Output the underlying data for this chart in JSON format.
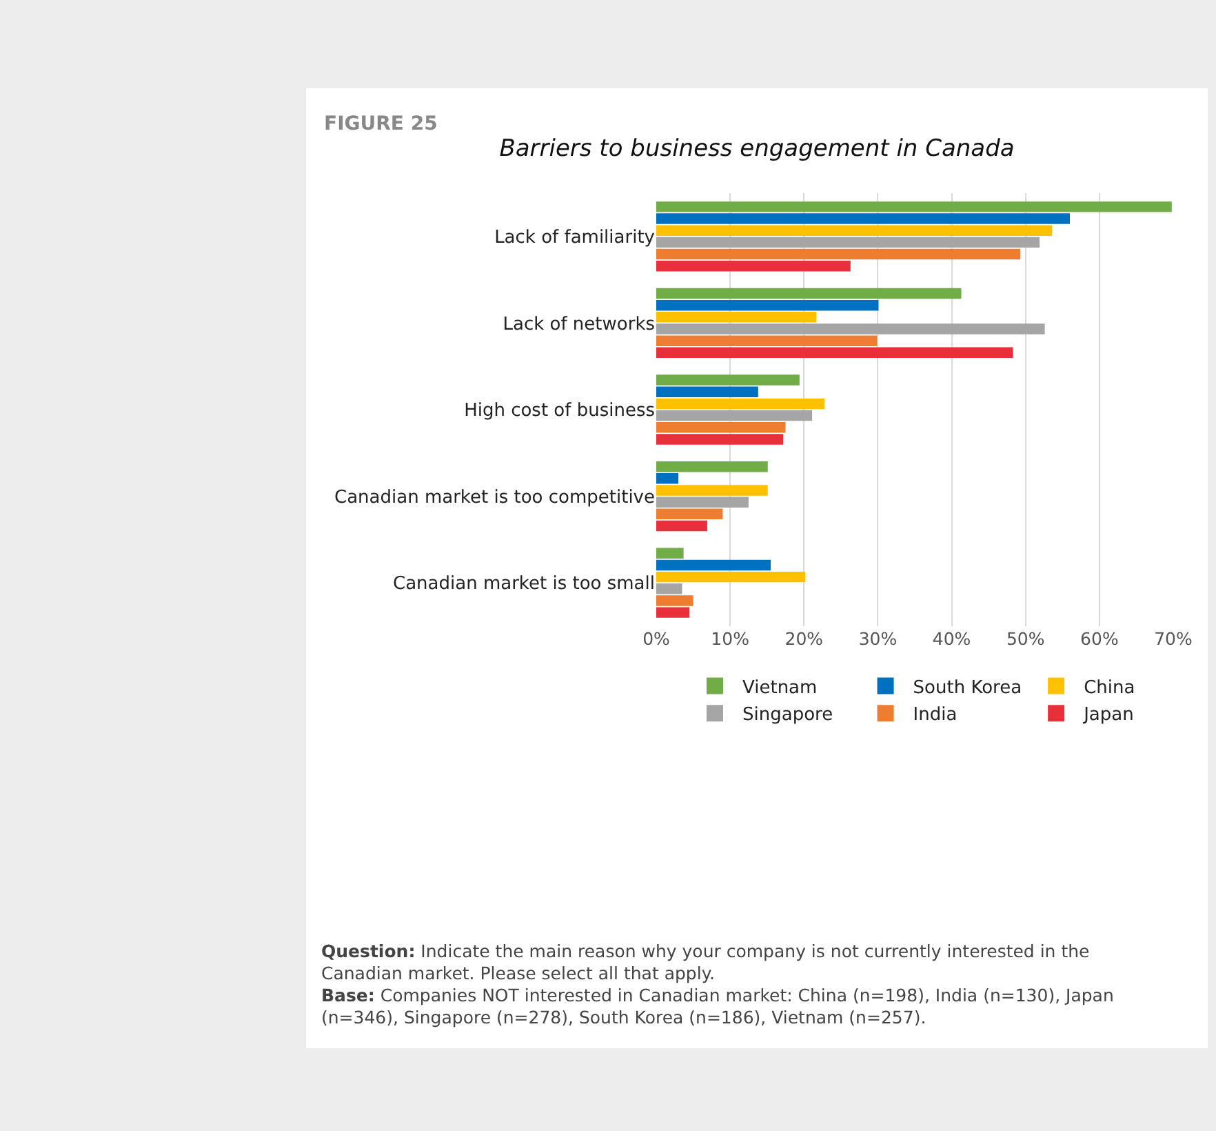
{
  "chart_data": {
    "type": "bar",
    "orientation": "horizontal",
    "title": "Barriers to business engagement in Canada",
    "categories": [
      "Lack of familiarity",
      "Lack of networks",
      "High cost of business",
      "Canadian market is too competitive",
      "Canadian market is too small"
    ],
    "series": [
      {
        "name": "Vietnam",
        "color": "#70ad47",
        "values": [
          69.8,
          41.3,
          19.4,
          15.1,
          3.7
        ]
      },
      {
        "name": "South Korea",
        "color": "#0070c0",
        "values": [
          56.0,
          30.1,
          13.8,
          3.0,
          15.5
        ]
      },
      {
        "name": "China",
        "color": "#ffc000",
        "values": [
          53.6,
          21.7,
          22.8,
          15.1,
          20.2
        ]
      },
      {
        "name": "Singapore",
        "color": "#a5a5a5",
        "values": [
          51.9,
          52.6,
          21.1,
          12.5,
          3.5
        ]
      },
      {
        "name": "India",
        "color": "#ed7d31",
        "values": [
          49.3,
          29.9,
          17.5,
          9.0,
          5.0
        ]
      },
      {
        "name": "Japan",
        "color": "#e8303a",
        "values": [
          26.3,
          48.3,
          17.2,
          6.9,
          4.5
        ]
      }
    ],
    "xlim": [
      0,
      70
    ],
    "xticks": [
      {
        "value": 0,
        "label": "0%"
      },
      {
        "value": 10,
        "label": "10%"
      },
      {
        "value": 20,
        "label": "20%"
      },
      {
        "value": 30,
        "label": "30%"
      },
      {
        "value": 40,
        "label": "40%"
      },
      {
        "value": 50,
        "label": "50%"
      },
      {
        "value": 60,
        "label": "60%"
      },
      {
        "value": 70,
        "label": "70%"
      }
    ],
    "grid": "x",
    "legend": "bottom",
    "annotations": [
      "FIGURE 25",
      "Question: Indicate the main reason why your company is not currently interested in the Canadian market. Please select all that apply.",
      "Base: Companies NOT interested in Canadian market: China (n=198), India (n=130), Japan (n=346), Singapore (n=278), South Korea (n=186), Vietnam (n=257)."
    ]
  }
}
